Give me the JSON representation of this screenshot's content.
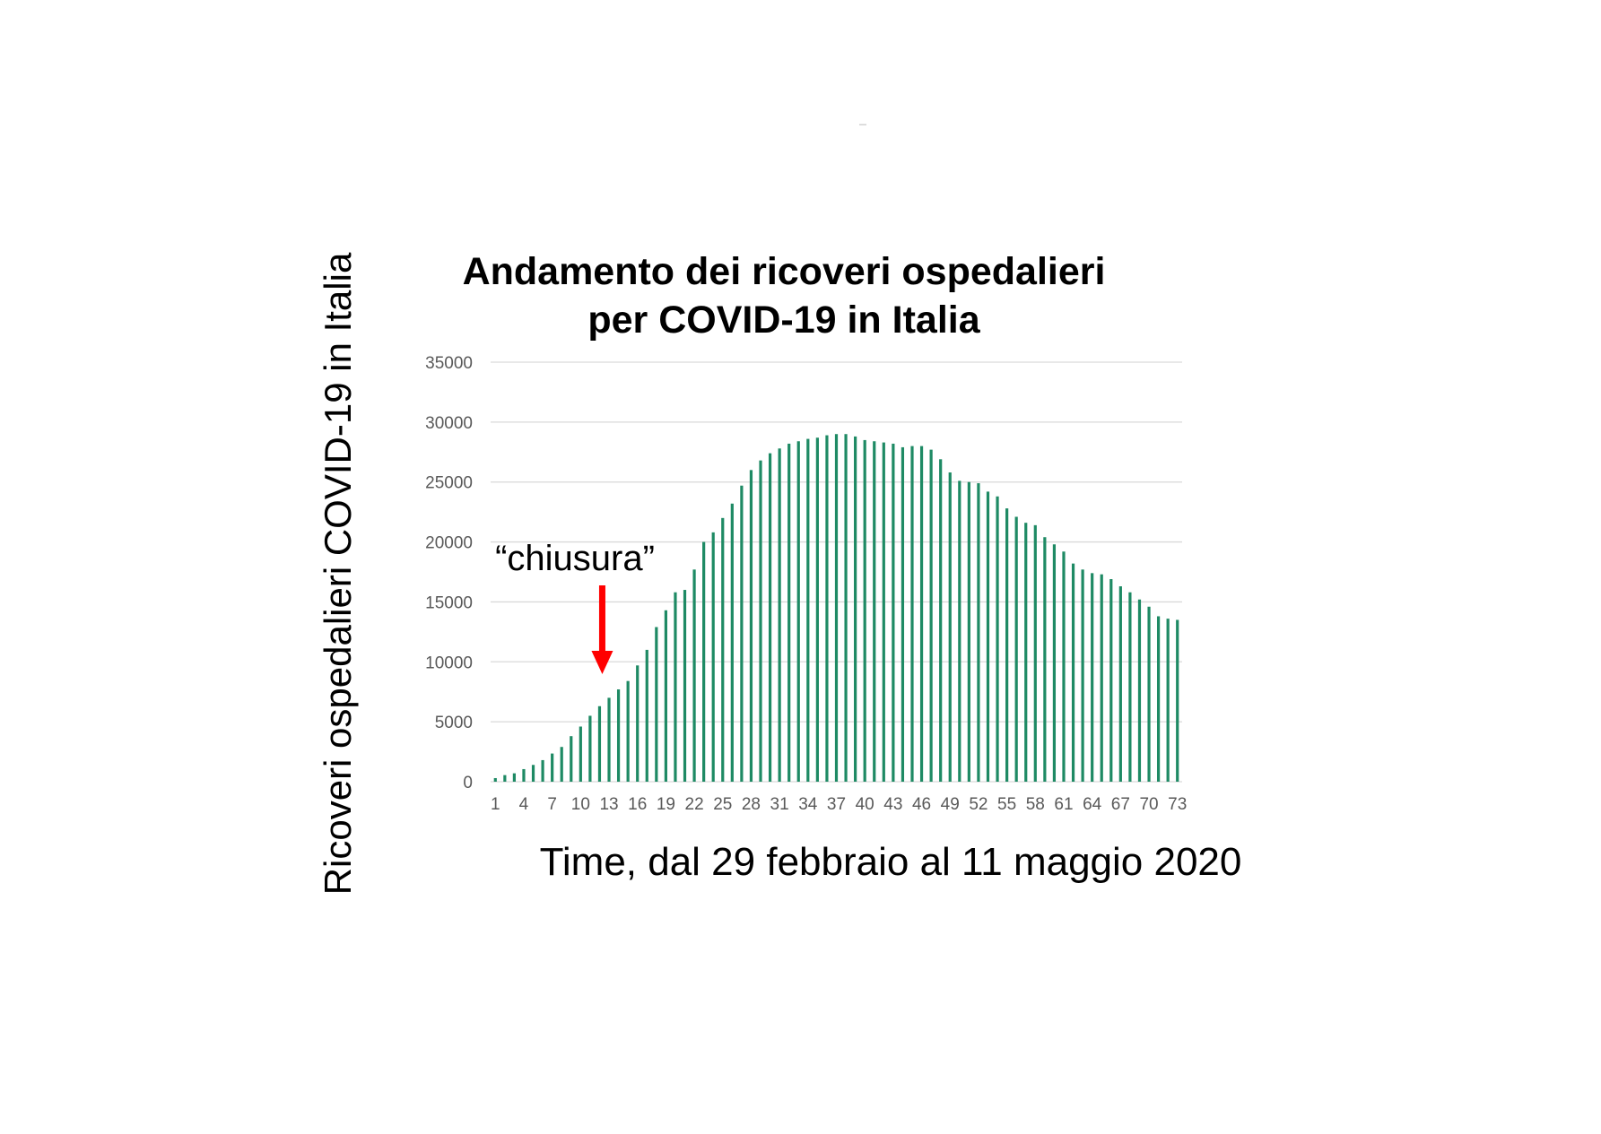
{
  "chart_data": {
    "type": "bar",
    "title": [
      "Andamento dei ricoveri ospedalieri",
      "per COVID-19 in Italia"
    ],
    "ylabel": "Ricoveri ospedalieri COVID-19 in Italia",
    "xlabel": "Time, dal 29 febbraio al 11 maggio 2020",
    "ylim": [
      0,
      35000
    ],
    "y_ticks": [
      "0",
      "5000",
      "10000",
      "15000",
      "20000",
      "25000",
      "30000",
      "35000"
    ],
    "x_tick_labels": [
      "1",
      "4",
      "7",
      "10",
      "13",
      "16",
      "19",
      "22",
      "25",
      "28",
      "31",
      "34",
      "37",
      "40",
      "43",
      "46",
      "49",
      "52",
      "55",
      "58",
      "61",
      "64",
      "67",
      "70",
      "73"
    ],
    "grid": true,
    "bar_color": "#1e8a64",
    "categories": [
      1,
      2,
      3,
      4,
      5,
      6,
      7,
      8,
      9,
      10,
      11,
      12,
      13,
      14,
      15,
      16,
      17,
      18,
      19,
      20,
      21,
      22,
      23,
      24,
      25,
      26,
      27,
      28,
      29,
      30,
      31,
      32,
      33,
      34,
      35,
      36,
      37,
      38,
      39,
      40,
      41,
      42,
      43,
      44,
      45,
      46,
      47,
      48,
      49,
      50,
      51,
      52,
      53,
      54,
      55,
      56,
      57,
      58,
      59,
      60,
      61,
      62,
      63,
      64,
      65,
      66,
      67,
      68,
      69,
      70,
      71,
      72,
      73
    ],
    "values": [
      300,
      550,
      700,
      1050,
      1400,
      1800,
      2350,
      2900,
      3800,
      4600,
      5500,
      6300,
      7000,
      7700,
      8400,
      9700,
      11000,
      12900,
      14300,
      15800,
      16000,
      17700,
      20000,
      20800,
      22000,
      23200,
      24700,
      26000,
      26800,
      27400,
      27800,
      28200,
      28400,
      28600,
      28700,
      28900,
      29000,
      29000,
      28800,
      28500,
      28400,
      28300,
      28200,
      27900,
      28000,
      28000,
      27700,
      26900,
      25800,
      25100,
      25000,
      24900,
      24200,
      23800,
      22800,
      22100,
      21600,
      21400,
      20400,
      19800,
      19200,
      18200,
      17700,
      17400,
      17300,
      16900,
      16300,
      15800,
      15200,
      14600,
      13800,
      13600,
      13500
    ],
    "annotation": {
      "text": "“chiusura”",
      "arrow_color": "#ff0000",
      "at_x": 12
    }
  }
}
